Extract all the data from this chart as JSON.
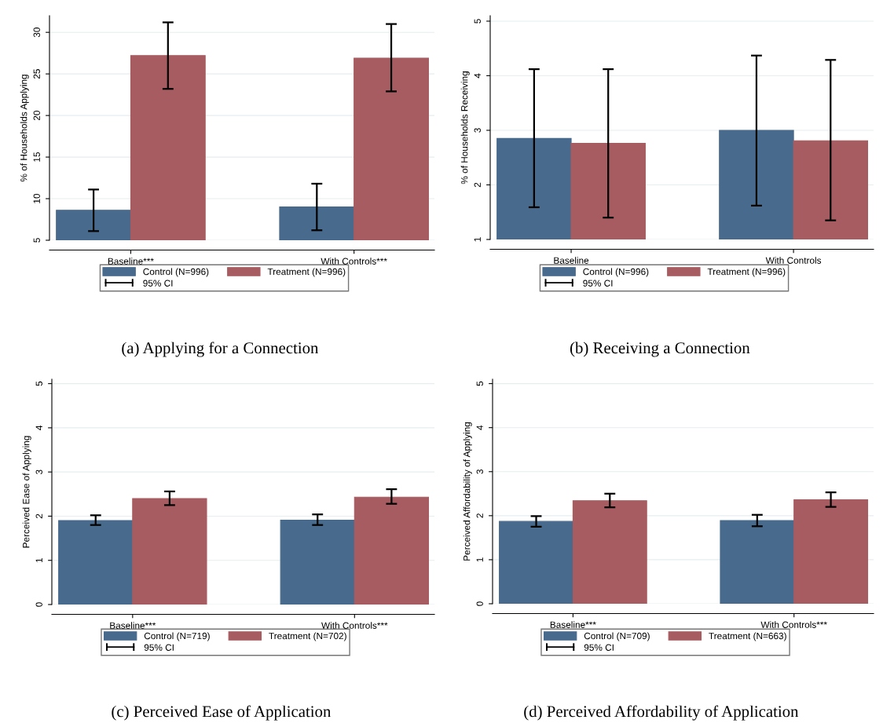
{
  "chart_data": [
    {
      "type": "bar",
      "title": "(a) Applying for a Connection",
      "ylabel": "% of Households Applying",
      "categories": [
        "Baseline***",
        "With Controls***"
      ],
      "series": [
        {
          "name": "Control (N=996)",
          "color": "#486a8c",
          "values": [
            8.6,
            9.0
          ],
          "errors": [
            [
              6.1,
              11.1
            ],
            [
              6.2,
              11.8
            ]
          ]
        },
        {
          "name": "Treatment (N=996)",
          "color": "#a65c60",
          "values": [
            27.2,
            26.9
          ],
          "errors": [
            [
              23.2,
              31.2
            ],
            [
              22.9,
              31.0
            ]
          ]
        }
      ],
      "ylim": [
        5,
        32
      ],
      "yticks": [
        5,
        10,
        15,
        20,
        25,
        30
      ],
      "grid": "y",
      "legend": "bottom",
      "annotations": [
        "95% CI"
      ]
    },
    {
      "type": "bar",
      "title": "(b) Receiving a Connection",
      "ylabel": "% of Households Receiving",
      "categories": [
        "Baseline",
        "With Controls"
      ],
      "series": [
        {
          "name": "Control (N=996)",
          "color": "#486a8c",
          "values": [
            2.85,
            3.0
          ],
          "errors": [
            [
              1.59,
              4.12
            ],
            [
              1.62,
              4.37
            ]
          ]
        },
        {
          "name": "Treatment (N=996)",
          "color": "#a65c60",
          "values": [
            2.76,
            2.81
          ],
          "errors": [
            [
              1.4,
              4.12
            ],
            [
              1.35,
              4.29
            ]
          ]
        }
      ],
      "ylim": [
        1,
        5.1
      ],
      "yticks": [
        1,
        2,
        3,
        4,
        5
      ],
      "grid": "y",
      "legend": "bottom",
      "annotations": [
        "95% CI"
      ]
    },
    {
      "type": "bar",
      "title": "(c) Perceived Ease of Application",
      "ylabel": "Perceived Ease of Applying",
      "categories": [
        "Baseline***",
        "With Controls***"
      ],
      "series": [
        {
          "name": "Control (N=719)",
          "color": "#486a8c",
          "values": [
            1.9,
            1.91
          ],
          "errors": [
            [
              1.8,
              2.02
            ],
            [
              1.8,
              2.04
            ]
          ]
        },
        {
          "name": "Treatment (N=702)",
          "color": "#a65c60",
          "values": [
            2.4,
            2.43
          ],
          "errors": [
            [
              2.25,
              2.56
            ],
            [
              2.28,
              2.61
            ]
          ]
        }
      ],
      "ylim": [
        0,
        5.1
      ],
      "yticks": [
        0,
        1,
        2,
        3,
        4,
        5
      ],
      "grid": "y",
      "legend": "bottom",
      "annotations": [
        "95% CI"
      ]
    },
    {
      "type": "bar",
      "title": "(d) Perceived Affordability of Application",
      "ylabel": "Perceived Affordability of Applying",
      "categories": [
        "Baseline***",
        "With Controls***"
      ],
      "series": [
        {
          "name": "Control (N=709)",
          "color": "#486a8c",
          "values": [
            1.87,
            1.89
          ],
          "errors": [
            [
              1.75,
              1.99
            ],
            [
              1.76,
              2.02
            ]
          ]
        },
        {
          "name": "Treatment (N=663)",
          "color": "#a65c60",
          "values": [
            2.34,
            2.36
          ],
          "errors": [
            [
              2.19,
              2.5
            ],
            [
              2.2,
              2.53
            ]
          ]
        }
      ],
      "ylim": [
        0,
        5.1
      ],
      "yticks": [
        0,
        1,
        2,
        3,
        4,
        5
      ],
      "grid": "y",
      "legend": "bottom",
      "annotations": [
        "95% CI"
      ]
    }
  ]
}
